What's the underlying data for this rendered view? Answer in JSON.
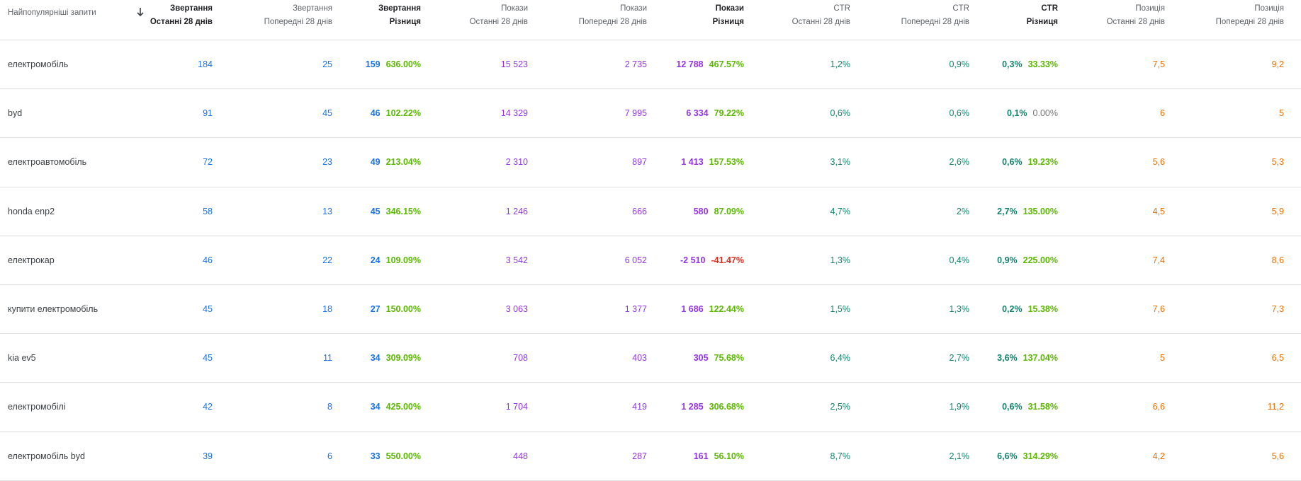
{
  "header": {
    "query": "Найпопулярніші запити",
    "columns": [
      {
        "l1": "Звертання",
        "l2": "Останні 28 днів"
      },
      {
        "l1": "Звертання",
        "l2": "Попередні 28 днів"
      },
      {
        "l1": "Звертання",
        "l2": "Різниця"
      },
      {
        "l1": "Покази",
        "l2": "Останні 28 днів"
      },
      {
        "l1": "Покази",
        "l2": "Попередні 28 днів"
      },
      {
        "l1": "Покази",
        "l2": "Різниця"
      },
      {
        "l1": "CTR",
        "l2": "Останні 28 днів"
      },
      {
        "l1": "CTR",
        "l2": "Попередні 28 днів"
      },
      {
        "l1": "CTR",
        "l2": "Різниця"
      },
      {
        "l1": "Позиція",
        "l2": "Останні 28 днів"
      },
      {
        "l1": "Позиція",
        "l2": "Попередні 28 днів"
      }
    ],
    "sort_icon": "arrow-down-icon"
  },
  "rows": [
    {
      "query": "електромобіль",
      "clicks_cur": "184",
      "clicks_prev": "25",
      "clicks_diff": "159",
      "clicks_pct": "636.00%",
      "impr_cur": "15 523",
      "impr_prev": "2 735",
      "impr_diff": "12 788",
      "impr_pct": "467.57%",
      "ctr_cur": "1,2%",
      "ctr_prev": "0,9%",
      "ctr_diff": "0,3%",
      "ctr_pct": "33.33%",
      "pos_cur": "7,5",
      "pos_prev": "9,2"
    },
    {
      "query": "byd",
      "clicks_cur": "91",
      "clicks_prev": "45",
      "clicks_diff": "46",
      "clicks_pct": "102.22%",
      "impr_cur": "14 329",
      "impr_prev": "7 995",
      "impr_diff": "6 334",
      "impr_pct": "79.22%",
      "ctr_cur": "0,6%",
      "ctr_prev": "0,6%",
      "ctr_diff": "0,1%",
      "ctr_pct": "0.00%",
      "pos_cur": "6",
      "pos_prev": "5"
    },
    {
      "query": "електроавтомобіль",
      "clicks_cur": "72",
      "clicks_prev": "23",
      "clicks_diff": "49",
      "clicks_pct": "213.04%",
      "impr_cur": "2 310",
      "impr_prev": "897",
      "impr_diff": "1 413",
      "impr_pct": "157.53%",
      "ctr_cur": "3,1%",
      "ctr_prev": "2,6%",
      "ctr_diff": "0,6%",
      "ctr_pct": "19.23%",
      "pos_cur": "5,6",
      "pos_prev": "5,3"
    },
    {
      "query": "honda enp2",
      "clicks_cur": "58",
      "clicks_prev": "13",
      "clicks_diff": "45",
      "clicks_pct": "346.15%",
      "impr_cur": "1 246",
      "impr_prev": "666",
      "impr_diff": "580",
      "impr_pct": "87.09%",
      "ctr_cur": "4,7%",
      "ctr_prev": "2%",
      "ctr_diff": "2,7%",
      "ctr_pct": "135.00%",
      "pos_cur": "4,5",
      "pos_prev": "5,9"
    },
    {
      "query": "електрокар",
      "clicks_cur": "46",
      "clicks_prev": "22",
      "clicks_diff": "24",
      "clicks_pct": "109.09%",
      "impr_cur": "3 542",
      "impr_prev": "6 052",
      "impr_diff": "-2 510",
      "impr_pct": "-41.47%",
      "ctr_cur": "1,3%",
      "ctr_prev": "0,4%",
      "ctr_diff": "0,9%",
      "ctr_pct": "225.00%",
      "pos_cur": "7,4",
      "pos_prev": "8,6"
    },
    {
      "query": "купити електромобіль",
      "clicks_cur": "45",
      "clicks_prev": "18",
      "clicks_diff": "27",
      "clicks_pct": "150.00%",
      "impr_cur": "3 063",
      "impr_prev": "1 377",
      "impr_diff": "1 686",
      "impr_pct": "122.44%",
      "ctr_cur": "1,5%",
      "ctr_prev": "1,3%",
      "ctr_diff": "0,2%",
      "ctr_pct": "15.38%",
      "pos_cur": "7,6",
      "pos_prev": "7,3"
    },
    {
      "query": "kia ev5",
      "clicks_cur": "45",
      "clicks_prev": "11",
      "clicks_diff": "34",
      "clicks_pct": "309.09%",
      "impr_cur": "708",
      "impr_prev": "403",
      "impr_diff": "305",
      "impr_pct": "75.68%",
      "ctr_cur": "6,4%",
      "ctr_prev": "2,7%",
      "ctr_diff": "3,6%",
      "ctr_pct": "137.04%",
      "pos_cur": "5",
      "pos_prev": "6,5"
    },
    {
      "query": "електромобілі",
      "clicks_cur": "42",
      "clicks_prev": "8",
      "clicks_diff": "34",
      "clicks_pct": "425.00%",
      "impr_cur": "1 704",
      "impr_prev": "419",
      "impr_diff": "1 285",
      "impr_pct": "306.68%",
      "ctr_cur": "2,5%",
      "ctr_prev": "1,9%",
      "ctr_diff": "0,6%",
      "ctr_pct": "31.58%",
      "pos_cur": "6,6",
      "pos_prev": "11,2"
    },
    {
      "query": "електромобіль byd",
      "clicks_cur": "39",
      "clicks_prev": "6",
      "clicks_diff": "33",
      "clicks_pct": "550.00%",
      "impr_cur": "448",
      "impr_prev": "287",
      "impr_diff": "161",
      "impr_pct": "56.10%",
      "ctr_cur": "8,7%",
      "ctr_prev": "2,1%",
      "ctr_diff": "6,6%",
      "ctr_pct": "314.29%",
      "pos_cur": "4,2",
      "pos_prev": "5,6"
    }
  ],
  "colors": {
    "clicks": "#1a73e8",
    "impressions": "#9334e6",
    "ctr": "#12826d",
    "position": "#e8710a",
    "positive_change": "#5bb800",
    "negative_change": "#d93025",
    "zero_change": "#757575"
  }
}
